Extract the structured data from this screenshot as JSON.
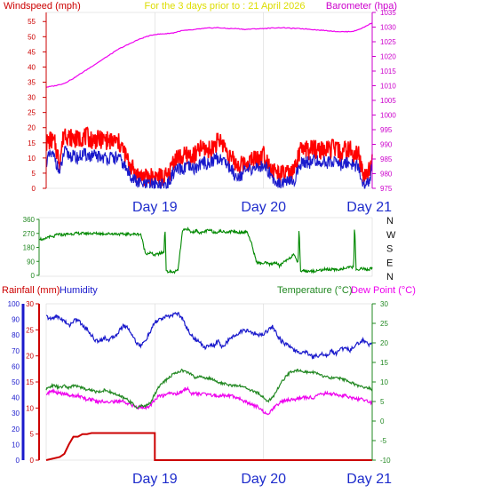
{
  "chart_data": [
    {
      "type": "line",
      "panel": "wind-baro",
      "title": "For the 3 days prior to : 21 April 2026",
      "ylabel_left": "Windspeed (mph)",
      "ylabel_right": "Barometer (hpa)",
      "ylim_left": [
        0,
        58
      ],
      "ylim_right": [
        975,
        1035
      ],
      "yticks_left": [
        "0",
        "5",
        "10",
        "15",
        "20",
        "25",
        "30",
        "35",
        "40",
        "45",
        "50",
        "55"
      ],
      "yticks_right": [
        "975",
        "980",
        "985",
        "990",
        "995",
        "1000",
        "1005",
        "1010",
        "1015",
        "1020",
        "1025",
        "1030",
        "1035"
      ],
      "xlim": [
        0,
        72
      ],
      "day_labels": [
        {
          "x": 24,
          "label": "Day 19"
        },
        {
          "x": 48,
          "label": "Day 20"
        },
        {
          "x": 72,
          "label": "Day 21"
        }
      ],
      "colors": {
        "gust": "#ff0000",
        "wind": "#1a1acc",
        "baro": "#ee00ee"
      },
      "series": [
        {
          "key": "baro",
          "axis": "right",
          "x": [
            0,
            2,
            4,
            6,
            8,
            10,
            12,
            14,
            16,
            18,
            20,
            22,
            24,
            26,
            28,
            30,
            32,
            34,
            36,
            38,
            40,
            42,
            44,
            46,
            48,
            50,
            52,
            54,
            56,
            58,
            60,
            62,
            64,
            66,
            68,
            70,
            72
          ],
          "values": [
            1009.5,
            1010,
            1010.8,
            1012.5,
            1014.5,
            1016.5,
            1018.5,
            1020.5,
            1022.5,
            1024,
            1025.5,
            1026.7,
            1027.5,
            1027.7,
            1028,
            1028.8,
            1029,
            1029.4,
            1029.7,
            1029.8,
            1029.5,
            1029.5,
            1029.2,
            1029.4,
            1029.5,
            1029.7,
            1029.8,
            1029.6,
            1029.5,
            1029.3,
            1029,
            1028.8,
            1028.5,
            1028.4,
            1028.6,
            1029.8,
            1031.5
          ]
        },
        {
          "key": "gust",
          "axis": "left",
          "x": [
            0,
            1,
            2,
            2.5,
            3,
            4,
            5,
            6,
            7,
            8,
            9,
            10,
            11,
            12,
            13,
            14,
            15,
            16,
            17,
            18,
            20,
            22,
            24,
            26,
            27,
            28,
            29,
            30,
            31,
            32,
            33,
            34,
            35,
            36,
            37,
            38,
            39,
            40,
            41,
            42,
            43,
            44,
            45,
            46,
            47,
            48,
            49,
            50,
            51,
            52,
            53,
            54,
            55,
            56,
            57,
            58,
            59,
            60,
            61,
            62,
            63,
            64,
            65,
            66,
            67,
            68,
            69,
            70,
            71,
            71.5,
            72
          ],
          "values": [
            15,
            16,
            14.5,
            11,
            9,
            19,
            17,
            16.5,
            16,
            17,
            17,
            16,
            16,
            16,
            16,
            15.5,
            15.5,
            15,
            13,
            9,
            4.5,
            3.5,
            4,
            3.5,
            4,
            9,
            10.5,
            10,
            11,
            10.5,
            11,
            13,
            13,
            12.5,
            14,
            15.5,
            15,
            12,
            9.5,
            8,
            7.5,
            8.5,
            9,
            10,
            10,
            11.5,
            9,
            6,
            5,
            4.5,
            5,
            4.5,
            6,
            12,
            13,
            12.5,
            13,
            13,
            12.5,
            12.5,
            13,
            13,
            11.5,
            12.5,
            13,
            10.5,
            11.5,
            4,
            5,
            6.5,
            12
          ]
        },
        {
          "key": "wind",
          "axis": "left",
          "x": [
            0,
            1,
            2,
            2.5,
            3,
            4,
            5,
            6,
            7,
            8,
            9,
            10,
            11,
            12,
            13,
            14,
            15,
            16,
            17,
            18,
            20,
            22,
            24,
            26,
            27,
            28,
            29,
            30,
            31,
            32,
            33,
            34,
            35,
            36,
            37,
            38,
            39,
            40,
            41,
            42,
            43,
            44,
            45,
            46,
            47,
            48,
            49,
            50,
            51,
            52,
            53,
            54,
            55,
            56,
            57,
            58,
            59,
            60,
            61,
            62,
            63,
            64,
            65,
            66,
            67,
            68,
            69,
            70,
            71,
            71.5,
            72
          ],
          "values": [
            9,
            11,
            10,
            7,
            5,
            12,
            11,
            10.5,
            10,
            11,
            11,
            10.5,
            10.5,
            10.5,
            10,
            10,
            10,
            10,
            8,
            5.5,
            2,
            1,
            1.5,
            1,
            1.5,
            5,
            6,
            6,
            7,
            6.5,
            6.5,
            8,
            8.5,
            8,
            9.5,
            10,
            9.5,
            8,
            6,
            4,
            4.5,
            5.5,
            6,
            7,
            6.5,
            8,
            6,
            3.5,
            2,
            2,
            2,
            2,
            3,
            8,
            9,
            8.5,
            9,
            9,
            8.5,
            8.5,
            9,
            9,
            7.5,
            8.5,
            9,
            7,
            7.5,
            0.5,
            1.5,
            3,
            8
          ]
        }
      ]
    },
    {
      "type": "line",
      "panel": "direction",
      "ylim": [
        0,
        360
      ],
      "yticks": [
        "0",
        "90",
        "180",
        "270",
        "360"
      ],
      "compass_labels": [
        "N",
        "W",
        "S",
        "E",
        "N"
      ],
      "xlim": [
        0,
        72
      ],
      "colors": {
        "dir": "#008800"
      },
      "series": [
        {
          "key": "dir",
          "x": [
            0,
            1,
            2,
            3,
            4,
            5,
            6,
            8,
            10,
            12,
            14,
            16,
            18,
            20,
            22,
            22.5,
            23,
            24,
            25,
            26,
            27,
            27.2,
            27.5,
            28,
            29,
            30,
            31,
            32,
            33,
            34,
            35,
            36,
            37,
            38,
            39,
            40,
            41,
            42,
            43,
            44,
            45,
            46,
            47,
            48,
            49,
            50,
            51,
            52,
            53,
            54,
            55,
            56,
            56.2,
            56.5,
            57,
            58,
            60,
            62,
            64,
            66,
            68,
            68.2,
            68.5,
            69,
            70,
            71,
            72
          ],
          "values": [
            240,
            225,
            250,
            245,
            265,
            260,
            265,
            270,
            270,
            270,
            268,
            268,
            265,
            265,
            265,
            200,
            140,
            145,
            130,
            140,
            150,
            330,
            20,
            25,
            20,
            30,
            285,
            300,
            275,
            290,
            270,
            285,
            290,
            275,
            285,
            280,
            280,
            285,
            275,
            280,
            280,
            195,
            85,
            75,
            80,
            70,
            85,
            60,
            90,
            110,
            130,
            85,
            330,
            20,
            35,
            25,
            30,
            40,
            35,
            45,
            55,
            350,
            30,
            40,
            45,
            35,
            45
          ]
        }
      ]
    },
    {
      "type": "line",
      "panel": "rain-temp",
      "ylabel_left_outer": "Rainfall (mm)",
      "ylabel_left_inner": "Humidity",
      "ylabel_right": "Temperature (°C)",
      "ylabel_right_2": "Dew Point (°C)",
      "ylim_humidity": [
        0,
        100
      ],
      "ylim_rain": [
        0,
        30
      ],
      "ylim_temp": [
        -10,
        30
      ],
      "yticks_humidity": [
        "0",
        "10",
        "20",
        "30",
        "40",
        "50",
        "60",
        "70",
        "80",
        "90",
        "100"
      ],
      "yticks_rain": [
        "0",
        "5",
        "10",
        "15",
        "20",
        "25",
        "30"
      ],
      "yticks_temp": [
        "-10",
        "-5",
        "0",
        "5",
        "10",
        "15",
        "20",
        "25",
        "30"
      ],
      "xlim": [
        0,
        72
      ],
      "day_labels": [
        {
          "x": 24,
          "label": "Day 19"
        },
        {
          "x": 48,
          "label": "Day 20"
        },
        {
          "x": 72,
          "label": "Day 21"
        }
      ],
      "colors": {
        "rain": "#cc0000",
        "hum": "#1a1acc",
        "temp": "#228822",
        "dew": "#ee00ee"
      },
      "series": [
        {
          "key": "rain",
          "axis": "rain",
          "x": [
            0,
            3,
            4,
            5,
            6,
            7,
            8,
            9,
            10,
            12,
            15,
            20,
            23.99,
            24,
            72
          ],
          "values": [
            0,
            0.6,
            1.2,
            3,
            4.5,
            4.5,
            5,
            5,
            5.2,
            5.2,
            5.2,
            5.2,
            5.2,
            0,
            0
          ]
        },
        {
          "key": "hum",
          "axis": "hum",
          "x": [
            0,
            1,
            2,
            3,
            4,
            5,
            6,
            7,
            8,
            9,
            10,
            11,
            12,
            13,
            14,
            15,
            16,
            17,
            18,
            19,
            20,
            21,
            22,
            23,
            24,
            25,
            26,
            27,
            28,
            29,
            30,
            31,
            32,
            33,
            34,
            35,
            36,
            37,
            38,
            39,
            40,
            41,
            42,
            43,
            44,
            45,
            46,
            47,
            48,
            49,
            50,
            51,
            52,
            53,
            54,
            55,
            56,
            57,
            58,
            59,
            60,
            61,
            62,
            63,
            64,
            65,
            66,
            67,
            68,
            69,
            70,
            71,
            72
          ],
          "values": [
            92,
            90,
            92,
            91,
            89,
            86,
            89,
            90,
            86,
            84,
            80,
            76,
            77,
            78,
            77,
            79,
            82,
            86,
            85,
            80,
            75,
            73,
            77,
            82,
            88,
            90,
            91,
            92,
            93,
            94,
            91,
            85,
            80,
            77,
            75,
            72,
            74,
            73,
            76,
            72,
            76,
            78,
            81,
            82,
            83,
            82,
            81,
            80,
            81,
            83,
            86,
            80,
            76,
            74,
            72,
            70,
            68,
            70,
            68,
            66,
            67,
            68,
            67,
            70,
            68,
            71,
            72,
            70,
            73,
            75,
            77,
            74,
            75
          ]
        },
        {
          "key": "temp",
          "axis": "temp",
          "x": [
            0,
            1,
            2,
            3,
            4,
            5,
            6,
            7,
            8,
            9,
            10,
            11,
            12,
            13,
            14,
            15,
            16,
            17,
            18,
            19,
            20,
            21,
            22,
            23,
            24,
            25,
            26,
            27,
            28,
            29,
            30,
            31,
            32,
            33,
            34,
            35,
            36,
            37,
            38,
            39,
            40,
            41,
            42,
            43,
            44,
            45,
            46,
            47,
            48,
            49,
            50,
            51,
            52,
            53,
            54,
            55,
            56,
            57,
            58,
            59,
            60,
            61,
            62,
            63,
            64,
            65,
            66,
            67,
            68,
            69,
            70,
            71,
            72
          ],
          "values": [
            8,
            9,
            9,
            8.5,
            9,
            8.5,
            9,
            9,
            8.5,
            8,
            8,
            7.5,
            7.5,
            8,
            7.5,
            7,
            6.5,
            6,
            5.5,
            4.5,
            3.5,
            3.8,
            4,
            4.5,
            7,
            9,
            10,
            11,
            12,
            12.5,
            13,
            12.5,
            12,
            11,
            11.5,
            11,
            11,
            10.5,
            10,
            9.5,
            9.5,
            9,
            9,
            9,
            8.5,
            8,
            7.5,
            7,
            6,
            5,
            6,
            8,
            10,
            11.5,
            12.5,
            13,
            13,
            12.5,
            12.5,
            12.5,
            12,
            11.5,
            11.5,
            11,
            11,
            11,
            10.5,
            10,
            9.5,
            9,
            8.5,
            8.5,
            8
          ]
        },
        {
          "key": "dew",
          "axis": "temp",
          "x": [
            0,
            1,
            2,
            3,
            4,
            5,
            6,
            7,
            8,
            9,
            10,
            11,
            12,
            13,
            14,
            15,
            16,
            17,
            18,
            19,
            20,
            21,
            22,
            23,
            24,
            25,
            26,
            27,
            28,
            29,
            30,
            31,
            32,
            33,
            34,
            35,
            36,
            37,
            38,
            39,
            40,
            41,
            42,
            43,
            44,
            45,
            46,
            47,
            48,
            49,
            50,
            51,
            52,
            53,
            54,
            55,
            56,
            57,
            58,
            59,
            60,
            61,
            62,
            63,
            64,
            65,
            66,
            67,
            68,
            69,
            70,
            71,
            72
          ],
          "values": [
            7,
            7.5,
            7.5,
            7,
            7,
            6.5,
            6.5,
            6.5,
            6,
            5.5,
            5.5,
            5,
            5,
            5,
            5,
            5,
            5,
            5,
            4.5,
            4,
            3.5,
            3.5,
            3.5,
            4,
            5.5,
            6.5,
            6.5,
            7,
            7,
            7,
            7.5,
            8.5,
            7,
            7,
            7,
            7,
            7,
            6.5,
            6.5,
            6.5,
            6.5,
            6.5,
            6,
            5.5,
            5,
            4.5,
            4,
            3.5,
            2.5,
            1.5,
            3,
            4,
            5,
            5.5,
            5.5,
            5.5,
            6,
            6,
            6,
            6,
            6.5,
            7,
            7,
            7,
            7,
            6.5,
            6.5,
            6,
            6,
            5.5,
            5.5,
            5,
            4.5
          ]
        }
      ]
    }
  ]
}
